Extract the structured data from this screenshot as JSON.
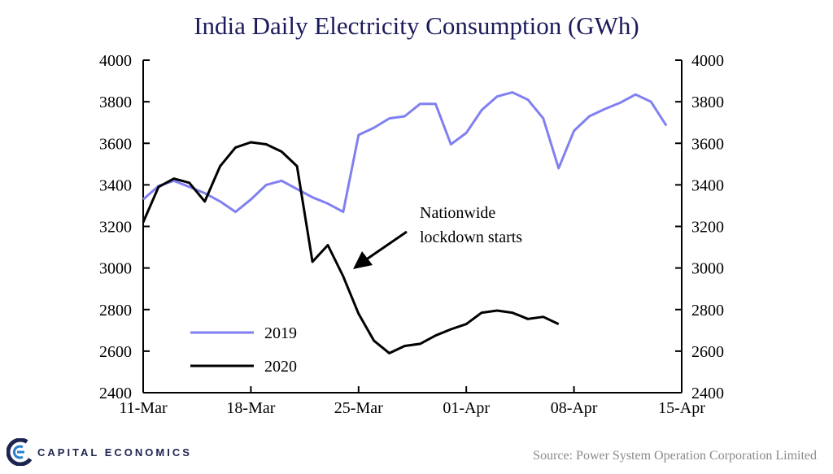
{
  "chart_data": {
    "type": "line",
    "title": "India Daily Electricity Consumption (GWh)",
    "xlabel": "",
    "ylabel": "",
    "ylim": [
      2400,
      4000
    ],
    "y_ticks": [
      2400,
      2600,
      2800,
      3000,
      3200,
      3400,
      3600,
      3800,
      4000
    ],
    "x_ticks": [
      "11-Mar",
      "18-Mar",
      "25-Mar",
      "01-Apr",
      "08-Apr",
      "15-Apr"
    ],
    "x_day_range": [
      0,
      35
    ],
    "series": [
      {
        "name": "2019",
        "color": "#8080f0",
        "x": [
          0,
          1,
          2,
          3,
          4,
          5,
          6,
          7,
          8,
          9,
          10,
          11,
          12,
          13,
          14,
          15,
          16,
          17,
          18,
          19,
          20,
          21,
          22,
          23,
          24,
          25,
          26,
          27,
          28,
          29,
          30,
          31,
          32,
          33,
          34,
          35
        ],
        "values": [
          3330,
          3395,
          3420,
          3390,
          3360,
          3320,
          3270,
          3330,
          3400,
          3420,
          3380,
          3340,
          3310,
          3270,
          3640,
          3675,
          3720,
          3730,
          3790,
          3790,
          3595,
          3650,
          3760,
          3825,
          3845,
          3810,
          3720,
          3480,
          3660,
          3730,
          3765,
          3795,
          3835,
          3800,
          3685,
          null
        ]
      },
      {
        "name": "2020",
        "color": "#000000",
        "x": [
          0,
          1,
          2,
          3,
          4,
          5,
          6,
          7,
          8,
          9,
          10,
          11,
          12,
          13,
          14,
          15,
          16,
          17,
          18,
          19,
          20,
          21,
          22,
          23,
          24,
          25,
          26,
          27
        ],
        "values": [
          3220,
          3390,
          3430,
          3410,
          3320,
          3490,
          3580,
          3605,
          3595,
          3560,
          3490,
          3030,
          3110,
          2960,
          2780,
          2650,
          2590,
          2625,
          2635,
          2675,
          2705,
          2730,
          2785,
          2795,
          2785,
          2755,
          2765,
          2730
        ]
      }
    ],
    "annotation": {
      "lines": [
        "Nationwide",
        "lockdown starts"
      ]
    },
    "legend_position": "bottom-left"
  },
  "source": "Source: Power System Operation Corporation Limited",
  "brand": {
    "name": "CAPITAL ECONOMICS",
    "accent": "#1d2450"
  }
}
